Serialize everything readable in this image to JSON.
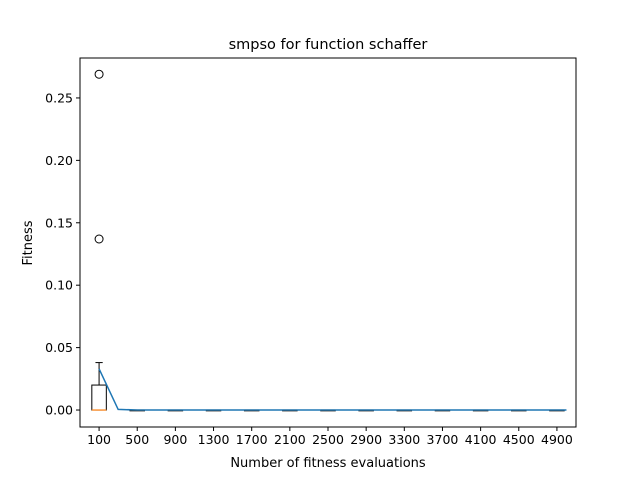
{
  "chart_data": {
    "type": "box",
    "title": "smpso for function schaffer",
    "xlabel": "Number of fitness evaluations",
    "ylabel": "Fitness",
    "ylim": [
      -0.0136,
      0.282
    ],
    "y_ticks": [
      0.0,
      0.05,
      0.1,
      0.15,
      0.2,
      0.25
    ],
    "y_tick_labels": [
      "0.00",
      "0.05",
      "0.10",
      "0.15",
      "0.20",
      "0.25"
    ],
    "categories": [
      "100",
      "500",
      "900",
      "1300",
      "1700",
      "2100",
      "2500",
      "2900",
      "3300",
      "3700",
      "4100",
      "4500",
      "4900"
    ],
    "boxes": [
      {
        "min": 0.0,
        "q1": 0.0,
        "median": 0.0,
        "q3": 0.02,
        "max": 0.038,
        "outliers": [
          0.137,
          0.269
        ]
      },
      {
        "min": 0.0,
        "q1": 0.0,
        "median": 0.0,
        "q3": 0.0,
        "max": 0.0,
        "outliers": []
      },
      {
        "min": 0.0,
        "q1": 0.0,
        "median": 0.0,
        "q3": 0.0,
        "max": 0.0,
        "outliers": []
      },
      {
        "min": 0.0,
        "q1": 0.0,
        "median": 0.0,
        "q3": 0.0,
        "max": 0.0,
        "outliers": []
      },
      {
        "min": 0.0,
        "q1": 0.0,
        "median": 0.0,
        "q3": 0.0,
        "max": 0.0,
        "outliers": []
      },
      {
        "min": 0.0,
        "q1": 0.0,
        "median": 0.0,
        "q3": 0.0,
        "max": 0.0,
        "outliers": []
      },
      {
        "min": 0.0,
        "q1": 0.0,
        "median": 0.0,
        "q3": 0.0,
        "max": 0.0,
        "outliers": []
      },
      {
        "min": 0.0,
        "q1": 0.0,
        "median": 0.0,
        "q3": 0.0,
        "max": 0.0,
        "outliers": []
      },
      {
        "min": 0.0,
        "q1": 0.0,
        "median": 0.0,
        "q3": 0.0,
        "max": 0.0,
        "outliers": []
      },
      {
        "min": 0.0,
        "q1": 0.0,
        "median": 0.0,
        "q3": 0.0,
        "max": 0.0,
        "outliers": []
      },
      {
        "min": 0.0,
        "q1": 0.0,
        "median": 0.0,
        "q3": 0.0,
        "max": 0.0,
        "outliers": []
      },
      {
        "min": 0.0,
        "q1": 0.0,
        "median": 0.0,
        "q3": 0.0,
        "max": 0.0,
        "outliers": []
      },
      {
        "min": 0.0,
        "q1": 0.0,
        "median": 0.0,
        "q3": 0.0,
        "max": 0.0,
        "outliers": []
      }
    ],
    "mean_line": {
      "x": [
        100,
        300,
        500,
        700,
        900,
        1100,
        1300,
        1500,
        1700,
        1900,
        2100,
        2300,
        2500,
        2700,
        2900,
        3100,
        3300,
        3500,
        3700,
        3900,
        4100,
        4300,
        4500,
        4700,
        4900,
        5000
      ],
      "y": [
        0.033,
        0.0005,
        0.0,
        0.0,
        0.0,
        0.0,
        0.0,
        0.0,
        0.0,
        0.0,
        0.0,
        0.0,
        0.0,
        0.0,
        0.0,
        0.0,
        0.0,
        0.0,
        0.0,
        0.0,
        0.0,
        0.0,
        0.0,
        0.0,
        0.0,
        0.0
      ]
    },
    "colors": {
      "box": "#000000",
      "median": "#ff7f0e",
      "mean_line": "#1f77b4",
      "outlier": "#000000"
    },
    "grid": false,
    "legend": "none"
  }
}
